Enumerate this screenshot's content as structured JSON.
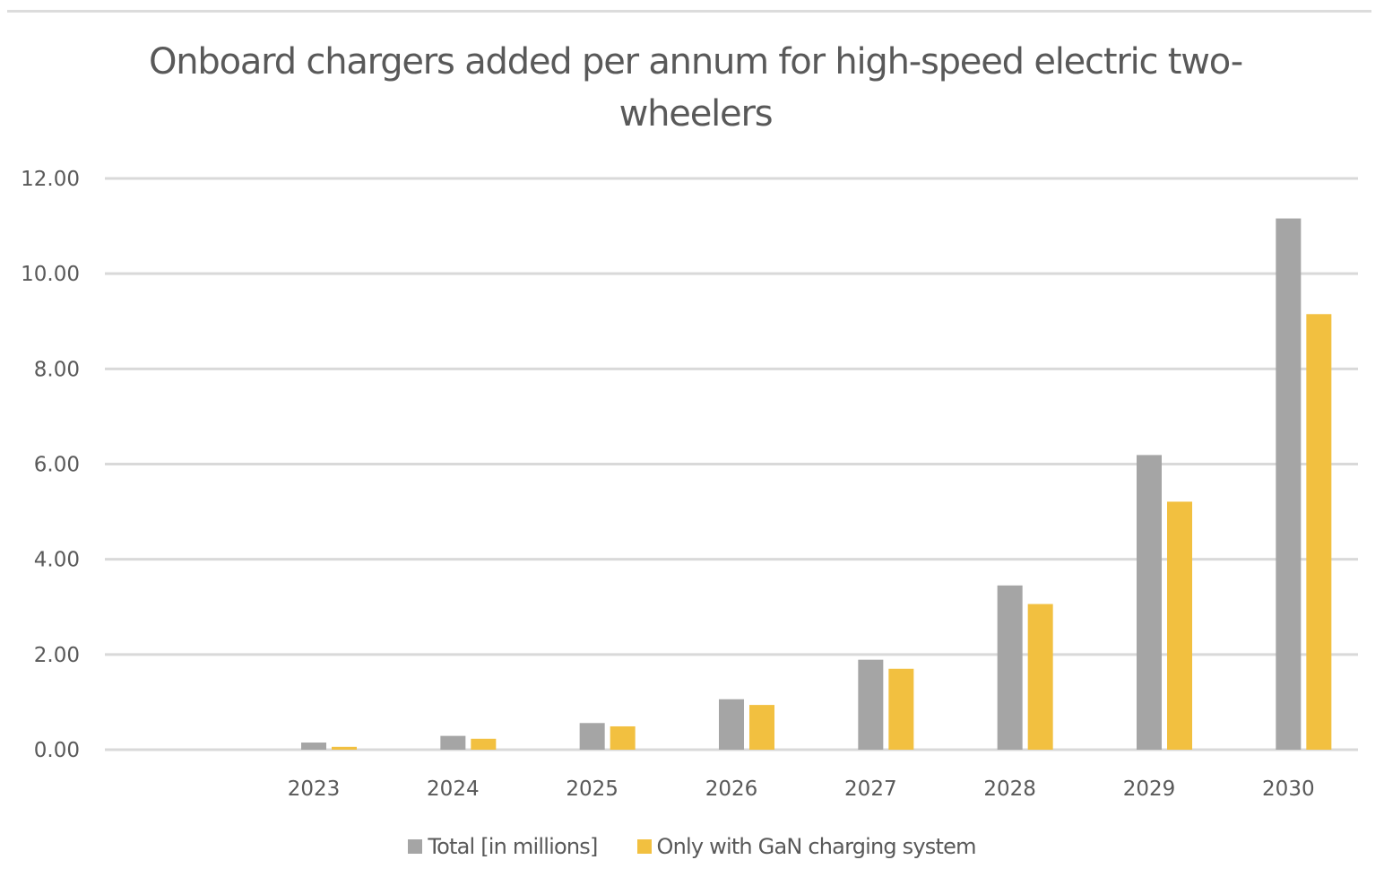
{
  "chart_data": {
    "type": "bar",
    "title": "Onboard chargers added per annum for high-speed electric two-wheelers",
    "title_lines": [
      "Onboard chargers added per annum for high-speed electric two-",
      "wheelers"
    ],
    "xlabel": "",
    "ylabel": "",
    "categories": [
      "",
      "2023",
      "2024",
      "2025",
      "2026",
      "2027",
      "2028",
      "2029",
      "2030"
    ],
    "series": [
      {
        "name": "Total [in millions]",
        "color": "#a5a5a5",
        "values": [
          null,
          0.15,
          0.29,
          0.56,
          1.06,
          1.89,
          3.45,
          6.19,
          11.16
        ]
      },
      {
        "name": "Only with GaN charging system",
        "color": "#f2c040",
        "values": [
          null,
          0.06,
          0.23,
          0.49,
          0.94,
          1.7,
          3.06,
          5.21,
          9.15
        ]
      }
    ],
    "ylim": [
      0,
      12
    ],
    "yticks": [
      0,
      2,
      4,
      6,
      8,
      10,
      12
    ],
    "ytick_labels": [
      "0.00",
      "2.00",
      "4.00",
      "6.00",
      "8.00",
      "10.00",
      "12.00"
    ],
    "grid": true,
    "grid_color": "#d9d9d9",
    "legend_position": "bottom"
  }
}
